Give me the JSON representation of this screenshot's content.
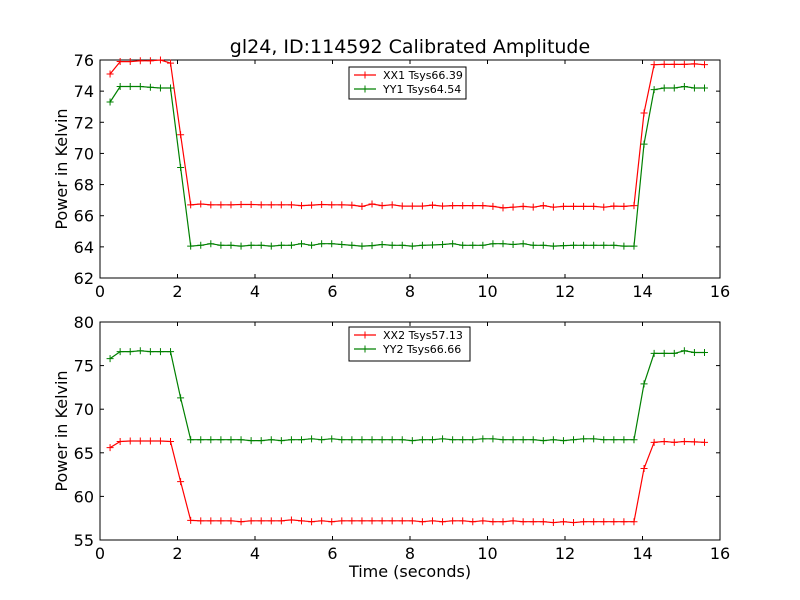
{
  "chart_data": [
    {
      "type": "line",
      "title": "gl24, ID:114592 Calibrated Amplitude",
      "xlabel": "",
      "ylabel": "Power in Kelvin",
      "xlim": [
        0,
        16
      ],
      "ylim": [
        62,
        76
      ],
      "xticks": [
        0,
        2,
        4,
        6,
        8,
        10,
        12,
        14,
        16
      ],
      "yticks": [
        62,
        64,
        66,
        68,
        70,
        72,
        74,
        76
      ],
      "legend_position": "upper-center",
      "x": [
        0.26,
        0.52,
        0.78,
        1.04,
        1.3,
        1.56,
        1.82,
        2.08,
        2.34,
        2.6,
        2.86,
        3.12,
        3.38,
        3.64,
        3.9,
        4.16,
        4.42,
        4.68,
        4.94,
        5.2,
        5.46,
        5.72,
        5.98,
        6.24,
        6.5,
        6.76,
        7.02,
        7.28,
        7.54,
        7.8,
        8.06,
        8.32,
        8.58,
        8.84,
        9.1,
        9.36,
        9.62,
        9.88,
        10.14,
        10.4,
        10.66,
        10.92,
        11.18,
        11.44,
        11.7,
        11.96,
        12.22,
        12.48,
        12.74,
        13.0,
        13.26,
        13.52,
        13.78,
        14.04,
        14.3,
        14.56,
        14.82,
        15.08,
        15.34,
        15.6
      ],
      "series": [
        {
          "name": "XX1 Tsys66.39",
          "color": "#ff0000",
          "values": [
            75.1,
            75.9,
            75.9,
            75.95,
            75.95,
            76.0,
            75.8,
            71.2,
            66.7,
            66.75,
            66.7,
            66.7,
            66.7,
            66.72,
            66.72,
            66.7,
            66.7,
            66.7,
            66.7,
            66.65,
            66.68,
            66.72,
            66.7,
            66.7,
            66.68,
            66.6,
            66.75,
            66.65,
            66.7,
            66.62,
            66.62,
            66.62,
            66.68,
            66.62,
            66.65,
            66.65,
            66.65,
            66.65,
            66.6,
            66.5,
            66.55,
            66.6,
            66.55,
            66.65,
            66.55,
            66.6,
            66.6,
            66.6,
            66.6,
            66.55,
            66.62,
            66.6,
            66.65,
            72.6,
            75.7,
            75.72,
            75.72,
            75.72,
            75.75,
            75.7
          ]
        },
        {
          "name": "YY1 Tsys64.54",
          "color": "#008000",
          "values": [
            73.3,
            74.3,
            74.3,
            74.3,
            74.25,
            74.2,
            74.2,
            69.1,
            64.05,
            64.1,
            64.2,
            64.1,
            64.1,
            64.05,
            64.1,
            64.1,
            64.05,
            64.1,
            64.1,
            64.2,
            64.1,
            64.2,
            64.2,
            64.15,
            64.1,
            64.05,
            64.08,
            64.15,
            64.1,
            64.1,
            64.05,
            64.1,
            64.12,
            64.15,
            64.2,
            64.1,
            64.1,
            64.1,
            64.2,
            64.2,
            64.15,
            64.2,
            64.1,
            64.1,
            64.05,
            64.08,
            64.1,
            64.1,
            64.1,
            64.1,
            64.1,
            64.05,
            64.05,
            70.6,
            74.1,
            74.2,
            74.2,
            74.3,
            74.2,
            74.2
          ]
        }
      ]
    },
    {
      "type": "line",
      "title": "",
      "xlabel": "Time (seconds)",
      "ylabel": "Power in Kelvin",
      "xlim": [
        0,
        16
      ],
      "ylim": [
        55,
        80
      ],
      "xticks": [
        0,
        2,
        4,
        6,
        8,
        10,
        12,
        14,
        16
      ],
      "yticks": [
        55,
        60,
        65,
        70,
        75,
        80
      ],
      "legend_position": "upper-center",
      "x": [
        0.26,
        0.52,
        0.78,
        1.04,
        1.3,
        1.56,
        1.82,
        2.08,
        2.34,
        2.6,
        2.86,
        3.12,
        3.38,
        3.64,
        3.9,
        4.16,
        4.42,
        4.68,
        4.94,
        5.2,
        5.46,
        5.72,
        5.98,
        6.24,
        6.5,
        6.76,
        7.02,
        7.28,
        7.54,
        7.8,
        8.06,
        8.32,
        8.58,
        8.84,
        9.1,
        9.36,
        9.62,
        9.88,
        10.14,
        10.4,
        10.66,
        10.92,
        11.18,
        11.44,
        11.7,
        11.96,
        12.22,
        12.48,
        12.74,
        13.0,
        13.26,
        13.52,
        13.78,
        14.04,
        14.3,
        14.56,
        14.82,
        15.08,
        15.34,
        15.6
      ],
      "series": [
        {
          "name": "XX2 Tsys57.13",
          "color": "#ff0000",
          "values": [
            65.6,
            66.3,
            66.35,
            66.35,
            66.35,
            66.35,
            66.3,
            61.7,
            57.25,
            57.2,
            57.2,
            57.2,
            57.2,
            57.1,
            57.2,
            57.2,
            57.2,
            57.2,
            57.3,
            57.2,
            57.1,
            57.2,
            57.1,
            57.2,
            57.2,
            57.2,
            57.2,
            57.2,
            57.2,
            57.2,
            57.2,
            57.1,
            57.2,
            57.1,
            57.2,
            57.2,
            57.1,
            57.2,
            57.1,
            57.1,
            57.2,
            57.1,
            57.1,
            57.1,
            57.0,
            57.1,
            57.0,
            57.1,
            57.1,
            57.1,
            57.1,
            57.1,
            57.1,
            63.2,
            66.2,
            66.3,
            66.2,
            66.3,
            66.25,
            66.2
          ]
        },
        {
          "name": "YY2 Tsys66.66",
          "color": "#008000",
          "values": [
            75.8,
            76.6,
            76.6,
            76.7,
            76.6,
            76.6,
            76.6,
            71.3,
            66.5,
            66.5,
            66.5,
            66.5,
            66.5,
            66.5,
            66.4,
            66.4,
            66.5,
            66.4,
            66.5,
            66.5,
            66.6,
            66.5,
            66.6,
            66.5,
            66.5,
            66.5,
            66.5,
            66.5,
            66.5,
            66.5,
            66.4,
            66.5,
            66.5,
            66.6,
            66.5,
            66.5,
            66.5,
            66.6,
            66.6,
            66.5,
            66.5,
            66.5,
            66.5,
            66.4,
            66.5,
            66.4,
            66.5,
            66.6,
            66.6,
            66.5,
            66.5,
            66.5,
            66.5,
            72.9,
            76.4,
            76.4,
            76.4,
            76.7,
            76.5,
            76.5
          ]
        }
      ]
    }
  ]
}
